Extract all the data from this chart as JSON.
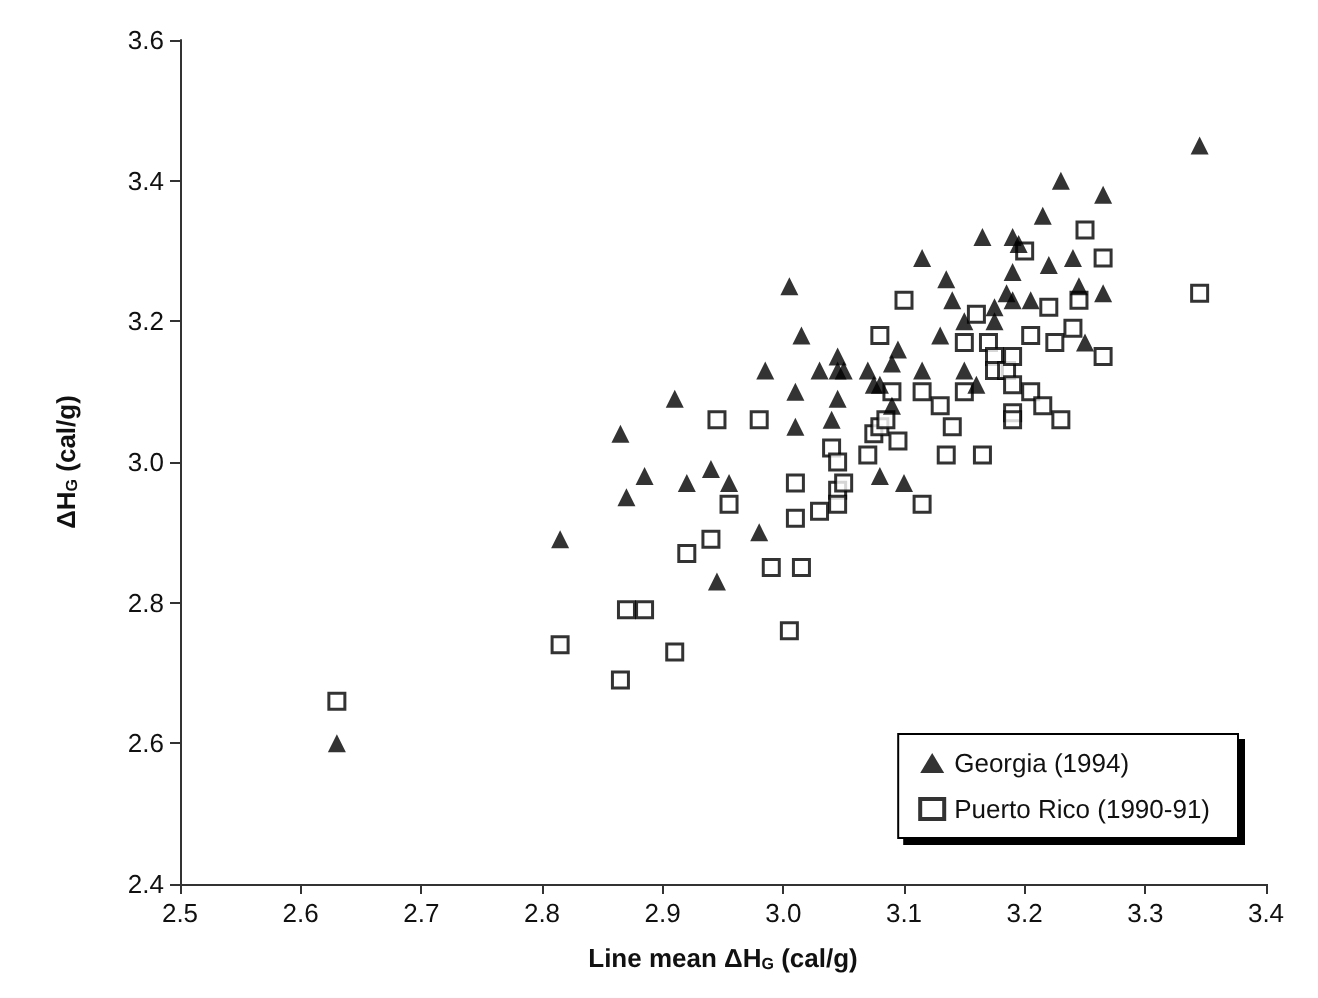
{
  "chart_data": {
    "type": "scatter",
    "xlabel": "Line mean ΔH$_{G}$ (cal/g)",
    "ylabel": "ΔH$_{G}$ (cal/g)",
    "xlim": [
      2.5,
      3.4
    ],
    "xticks": [
      2.5,
      2.6,
      2.7,
      2.8,
      2.9,
      {
        "value": 3,
        "label": "3.0"
      },
      3.1,
      3.2,
      3.3,
      3.4
    ],
    "ylim": [
      2.4,
      3.6
    ],
    "yticks": [
      2.4,
      2.6,
      2.8,
      {
        "value": 3,
        "label": "3.0"
      },
      3.2,
      3.4,
      3.6
    ],
    "grid": false,
    "legend": "bottom right",
    "series": [
      {
        "name": "Georgia (1994)",
        "color": "#000000",
        "marker": "triangle",
        "x": [
          2.63,
          2.815,
          2.865,
          2.87,
          2.885,
          2.91,
          2.92,
          2.94,
          2.945,
          2.955,
          2.98,
          2.985,
          3.005,
          3.01,
          3.01,
          3.015,
          3.03,
          3.04,
          3.045,
          3.045,
          3.045,
          3.05,
          3.07,
          3.075,
          3.08,
          3.08,
          3.09,
          3.09,
          3.095,
          3.1,
          3.115,
          3.115,
          3.13,
          3.135,
          3.14,
          3.15,
          3.15,
          3.16,
          3.165,
          3.175,
          3.175,
          3.185,
          3.19,
          3.19,
          3.19,
          3.195,
          3.205,
          3.215,
          3.22,
          3.23,
          3.24,
          3.245,
          3.25,
          3.265,
          3.265,
          3.345
        ],
        "values": [
          2.6,
          2.89,
          3.04,
          2.95,
          2.98,
          3.09,
          2.97,
          2.99,
          2.83,
          2.97,
          2.9,
          3.13,
          3.25,
          3.1,
          3.05,
          3.18,
          3.13,
          3.06,
          3.15,
          3.09,
          3.13,
          3.13,
          3.13,
          3.11,
          3.11,
          2.98,
          3.14,
          3.08,
          3.16,
          2.97,
          3.29,
          3.13,
          3.18,
          3.26,
          3.23,
          3.2,
          3.13,
          3.11,
          3.32,
          3.22,
          3.2,
          3.24,
          3.32,
          3.27,
          3.23,
          3.31,
          3.23,
          3.35,
          3.28,
          3.4,
          3.29,
          3.25,
          3.17,
          3.38,
          3.24,
          3.45
        ]
      },
      {
        "name": "Puerto Rico (1990-91)",
        "color": "#000000",
        "marker": "square",
        "x": [
          2.63,
          2.815,
          2.865,
          2.87,
          2.885,
          2.91,
          2.92,
          2.94,
          2.945,
          2.955,
          2.98,
          2.99,
          3.005,
          3.01,
          3.01,
          3.015,
          3.03,
          3.04,
          3.045,
          3.045,
          3.045,
          3.05,
          3.07,
          3.075,
          3.08,
          3.08,
          3.085,
          3.09,
          3.095,
          3.1,
          3.115,
          3.115,
          3.13,
          3.135,
          3.14,
          3.15,
          3.15,
          3.16,
          3.165,
          3.17,
          3.175,
          3.175,
          3.185,
          3.19,
          3.19,
          3.19,
          3.19,
          3.2,
          3.205,
          3.205,
          3.215,
          3.22,
          3.225,
          3.23,
          3.24,
          3.245,
          3.25,
          3.265,
          3.265,
          3.345
        ],
        "values": [
          2.66,
          2.74,
          2.69,
          2.79,
          2.79,
          2.73,
          2.87,
          2.89,
          3.06,
          2.94,
          3.06,
          2.85,
          2.76,
          2.97,
          2.92,
          2.85,
          2.93,
          3.02,
          3.0,
          2.96,
          2.94,
          2.97,
          3.01,
          3.04,
          3.05,
          3.18,
          3.06,
          3.1,
          3.03,
          3.23,
          3.1,
          2.94,
          3.08,
          3.01,
          3.05,
          3.17,
          3.1,
          3.21,
          3.01,
          3.17,
          3.15,
          3.13,
          3.13,
          3.15,
          3.11,
          3.07,
          3.06,
          3.3,
          3.18,
          3.1,
          3.08,
          3.22,
          3.17,
          3.06,
          3.19,
          3.23,
          3.33,
          3.29,
          3.15,
          3.24
        ]
      }
    ]
  }
}
